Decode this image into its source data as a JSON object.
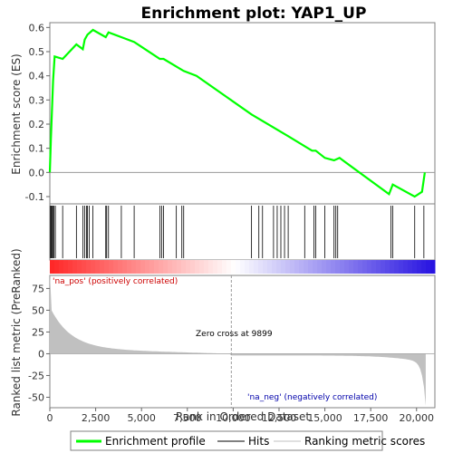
{
  "chart_data": {
    "type": "line",
    "title": "Enrichment plot: YAP1_UP",
    "xlabel": "Rank in Ordered Dataset",
    "ylabel_top": "Enrichment score (ES)",
    "ylabel_bottom": "Ranked list metric (PreRanked)",
    "xlim": [
      0,
      21000
    ],
    "es_ylim": [
      -0.13,
      0.62
    ],
    "metric_ylim": [
      -62,
      90
    ],
    "x_ticks": [
      {
        "value": 0,
        "label": "0"
      },
      {
        "value": 2500,
        "label": "2,500"
      },
      {
        "value": 5000,
        "label": "5,000"
      },
      {
        "value": 7500,
        "label": "7,500"
      },
      {
        "value": 10000,
        "label": "10,000"
      },
      {
        "value": 12500,
        "label": "12,500"
      },
      {
        "value": 15000,
        "label": "15,000"
      },
      {
        "value": 17500,
        "label": "17,500"
      },
      {
        "value": 20000,
        "label": "20,000"
      }
    ],
    "es_ticks": [
      {
        "value": 0.6,
        "label": "0.6"
      },
      {
        "value": 0.5,
        "label": "0.5"
      },
      {
        "value": 0.4,
        "label": "0.4"
      },
      {
        "value": 0.3,
        "label": "0.3"
      },
      {
        "value": 0.2,
        "label": "0.2"
      },
      {
        "value": 0.1,
        "label": "0.1"
      },
      {
        "value": 0.0,
        "label": "0.0"
      },
      {
        "value": -0.1,
        "label": "-0.1"
      }
    ],
    "metric_ticks": [
      {
        "value": 75,
        "label": "75"
      },
      {
        "value": 50,
        "label": "50"
      },
      {
        "value": 25,
        "label": "25"
      },
      {
        "value": 0,
        "label": "0"
      },
      {
        "value": -25,
        "label": "-25"
      },
      {
        "value": -50,
        "label": "-50"
      }
    ],
    "enrichment_profile": {
      "x": [
        0,
        60,
        120,
        180,
        260,
        700,
        1450,
        1800,
        1900,
        2050,
        2350,
        3050,
        3200,
        3900,
        4600,
        5000,
        6000,
        6200,
        7300,
        8000,
        11000,
        13000,
        14300,
        14500,
        15000,
        15500,
        15800,
        18500,
        18700,
        19900,
        20300,
        20450
      ],
      "y": [
        0.0,
        0.14,
        0.26,
        0.38,
        0.48,
        0.47,
        0.53,
        0.51,
        0.55,
        0.57,
        0.59,
        0.56,
        0.58,
        0.56,
        0.54,
        0.52,
        0.47,
        0.47,
        0.42,
        0.4,
        0.24,
        0.15,
        0.09,
        0.09,
        0.06,
        0.05,
        0.06,
        -0.09,
        -0.05,
        -0.1,
        -0.08,
        0.0
      ]
    },
    "hits": [
      40,
      80,
      130,
      180,
      230,
      300,
      700,
      1450,
      1800,
      1900,
      2000,
      2050,
      2150,
      2350,
      3050,
      3100,
      3200,
      3900,
      4600,
      6000,
      6100,
      6200,
      6900,
      7200,
      7300,
      11000,
      11400,
      11600,
      12200,
      12400,
      12600,
      12800,
      13000,
      13900,
      14400,
      14500,
      15000,
      15500,
      15600,
      15700,
      18600,
      18700,
      19900,
      20400
    ],
    "zero_cross": {
      "value": 9899,
      "label": "Zero cross at 9899"
    },
    "pos_label": "'na_pos' (positively correlated)",
    "neg_label": "'na_neg' (negatively correlated)",
    "legend": [
      {
        "name": "Enrichment profile",
        "color": "#00ff00"
      },
      {
        "name": "Hits",
        "color": "#000000"
      },
      {
        "name": "Ranking metric scores",
        "color": "#c0c0c0"
      }
    ],
    "colors": {
      "profile": "#00ff00",
      "hits": "#000000",
      "metric_fill": "#c0c0c0",
      "pos_text": "#cc0000",
      "neg_text": "#0000aa"
    }
  }
}
